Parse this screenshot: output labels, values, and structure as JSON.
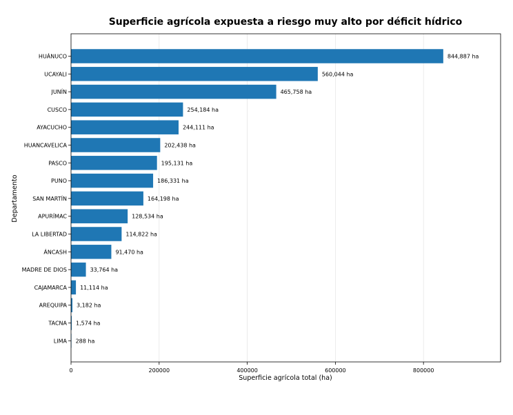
{
  "chart_data": {
    "type": "bar",
    "orientation": "horizontal",
    "title": "Superficie agrícola expuesta a riesgo muy alto por déficit hídrico",
    "xlabel": "Superficie agrícola total (ha)",
    "ylabel": "Departamento",
    "xlim": [
      0,
      975000
    ],
    "xticks": [
      0,
      200000,
      400000,
      600000,
      800000
    ],
    "grid": "vertical",
    "bar_color": "#1f77b4",
    "categories": [
      "HUÁNUCO",
      "UCAYALI",
      "JUNÍN",
      "CUSCO",
      "AYACUCHO",
      "HUANCAVELICA",
      "PASCO",
      "PUNO",
      "SAN MARTÍN",
      "APURÍMAC",
      "LA LIBERTAD",
      "ÁNCASH",
      "MADRE DE DIOS",
      "CAJAMARCA",
      "AREQUIPA",
      "TACNA",
      "LIMA"
    ],
    "values": [
      844887,
      560044,
      465758,
      254184,
      244111,
      202438,
      195131,
      186331,
      164198,
      128534,
      114822,
      91470,
      33764,
      11114,
      3182,
      1574,
      288
    ],
    "value_labels": [
      "844,887 ha",
      "560,044 ha",
      "465,758 ha",
      "254,184 ha",
      "244,111 ha",
      "202,438 ha",
      "195,131 ha",
      "186,331 ha",
      "164,198 ha",
      "128,534 ha",
      "114,822 ha",
      "91,470 ha",
      "33,764 ha",
      "11,114 ha",
      "3,182 ha",
      "1,574 ha",
      "288 ha"
    ]
  }
}
